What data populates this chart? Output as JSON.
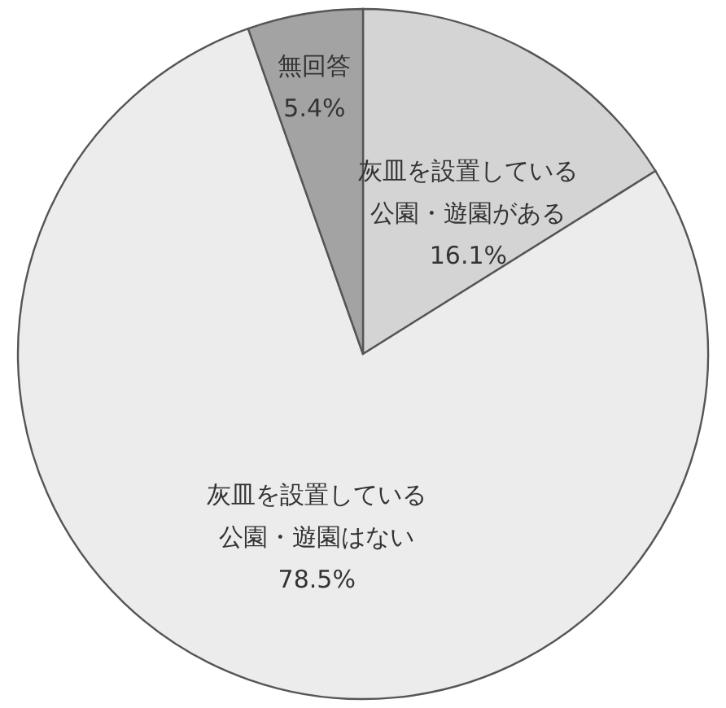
{
  "chart_data": {
    "type": "pie",
    "categories": [
      "灰皿を設置している公園・遊園がある",
      "灰皿を設置している公園・遊園はない",
      "無回答"
    ],
    "values": [
      16.1,
      78.5,
      5.4
    ],
    "value_labels": [
      "16.1%",
      "78.5%",
      "5.4%"
    ],
    "colors": [
      "#d4d4d4",
      "#ececec",
      "#a3a3a3"
    ]
  }
}
